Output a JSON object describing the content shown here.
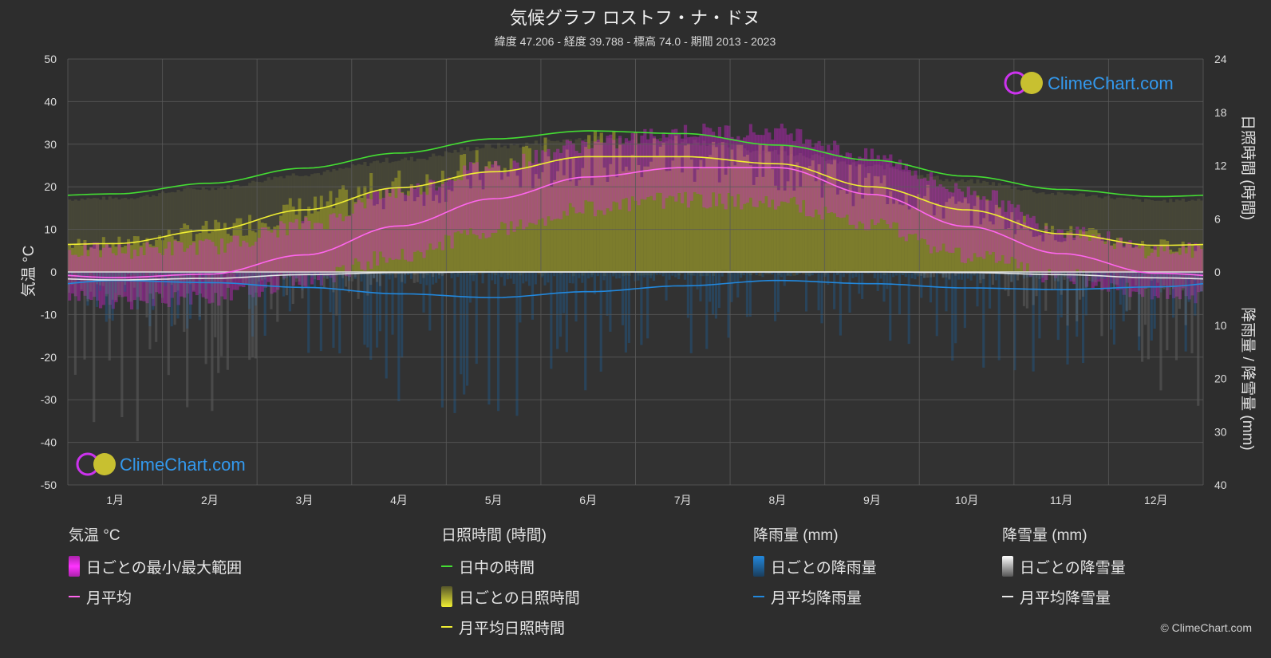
{
  "header": {
    "title": "気候グラフ ロストフ・ナ・ドヌ",
    "subtitle": "緯度 47.206 - 経度 39.788 - 標高 74.0 - 期間 2013 - 2023"
  },
  "axes": {
    "left_label": "気温 °C",
    "right_top_label": "日照時間 (時間)",
    "right_bottom_label": "降雨量 / 降雪量 (mm)"
  },
  "logo_text": "ClimeChart.com",
  "copyright": "© ClimeChart.com",
  "colors": {
    "background": "#2d2d2d",
    "plot_bg": "#323232",
    "grid": "#5a5a5a",
    "daylight": "#44dd33",
    "sunshine": "#f0ee33",
    "temp_mean": "#ff66ee",
    "temp_range": "#dd22dd",
    "sunshine_fill": "#8f8f2a",
    "rain": "#2288dd",
    "snow": "#e8e8e8",
    "logo": "#3399ee"
  },
  "legend": {
    "temp": {
      "title": "気温 °C",
      "range_label": "日ごとの最小/最大範囲",
      "mean_label": "月平均"
    },
    "sun": {
      "title": "日照時間 (時間)",
      "daylight_label": "日中の時間",
      "daily_label": "日ごとの日照時間",
      "mean_label": "月平均日照時間"
    },
    "rain": {
      "title": "降雨量 (mm)",
      "daily_label": "日ごとの降雨量",
      "mean_label": "月平均降雨量"
    },
    "snow": {
      "title": "降雪量 (mm)",
      "daily_label": "日ごとの降雪量",
      "mean_label": "月平均降雪量"
    }
  },
  "chart_data": {
    "type": "line",
    "categories": [
      "1月",
      "2月",
      "3月",
      "4月",
      "5月",
      "6月",
      "7月",
      "8月",
      "9月",
      "10月",
      "11月",
      "12月"
    ],
    "left_axis": {
      "ticks": [
        50,
        40,
        30,
        20,
        10,
        0,
        -10,
        -20,
        -30,
        -40,
        -50
      ],
      "ylim": [
        -50,
        50
      ]
    },
    "right_axis_sun": {
      "ticks": [
        24,
        18,
        12,
        6,
        0
      ],
      "ylim": [
        0,
        24
      ]
    },
    "right_axis_precip": {
      "ticks": [
        0,
        10,
        20,
        30,
        40
      ],
      "ylim": [
        0,
        40
      ]
    },
    "series": [
      {
        "name": "日中の時間",
        "unit": "h",
        "values": [
          8.8,
          10.0,
          11.7,
          13.4,
          15.0,
          15.9,
          15.6,
          14.3,
          12.6,
          10.8,
          9.3,
          8.5
        ]
      },
      {
        "name": "月平均日照時間",
        "unit": "h",
        "values": [
          3.2,
          4.7,
          7.0,
          9.5,
          11.3,
          13.0,
          13.0,
          12.2,
          9.6,
          7.0,
          4.3,
          3.0
        ]
      },
      {
        "name": "月平均",
        "unit": "°C",
        "values": [
          -1.3,
          -0.5,
          4.0,
          10.8,
          17.2,
          22.3,
          24.5,
          24.5,
          18.2,
          10.7,
          4.3,
          -0.3
        ]
      },
      {
        "name": "月平均降雨量",
        "unit": "mm",
        "values": [
          1.6,
          2.0,
          2.9,
          4.1,
          4.8,
          3.7,
          2.6,
          1.6,
          2.2,
          3.0,
          3.3,
          2.8
        ]
      },
      {
        "name": "月平均降雪量",
        "unit": "mm",
        "values": [
          1.5,
          1.2,
          0.5,
          0.1,
          0,
          0,
          0,
          0,
          0,
          0.1,
          0.5,
          1.1
        ]
      }
    ],
    "temp_range_min": [
      -5,
      -4,
      0,
      6,
      12,
      17,
      19,
      18,
      13,
      6,
      1,
      -3
    ],
    "temp_range_max": [
      3,
      4,
      9,
      17,
      23,
      28,
      31,
      31,
      25,
      17,
      8,
      3
    ],
    "grid": true
  }
}
